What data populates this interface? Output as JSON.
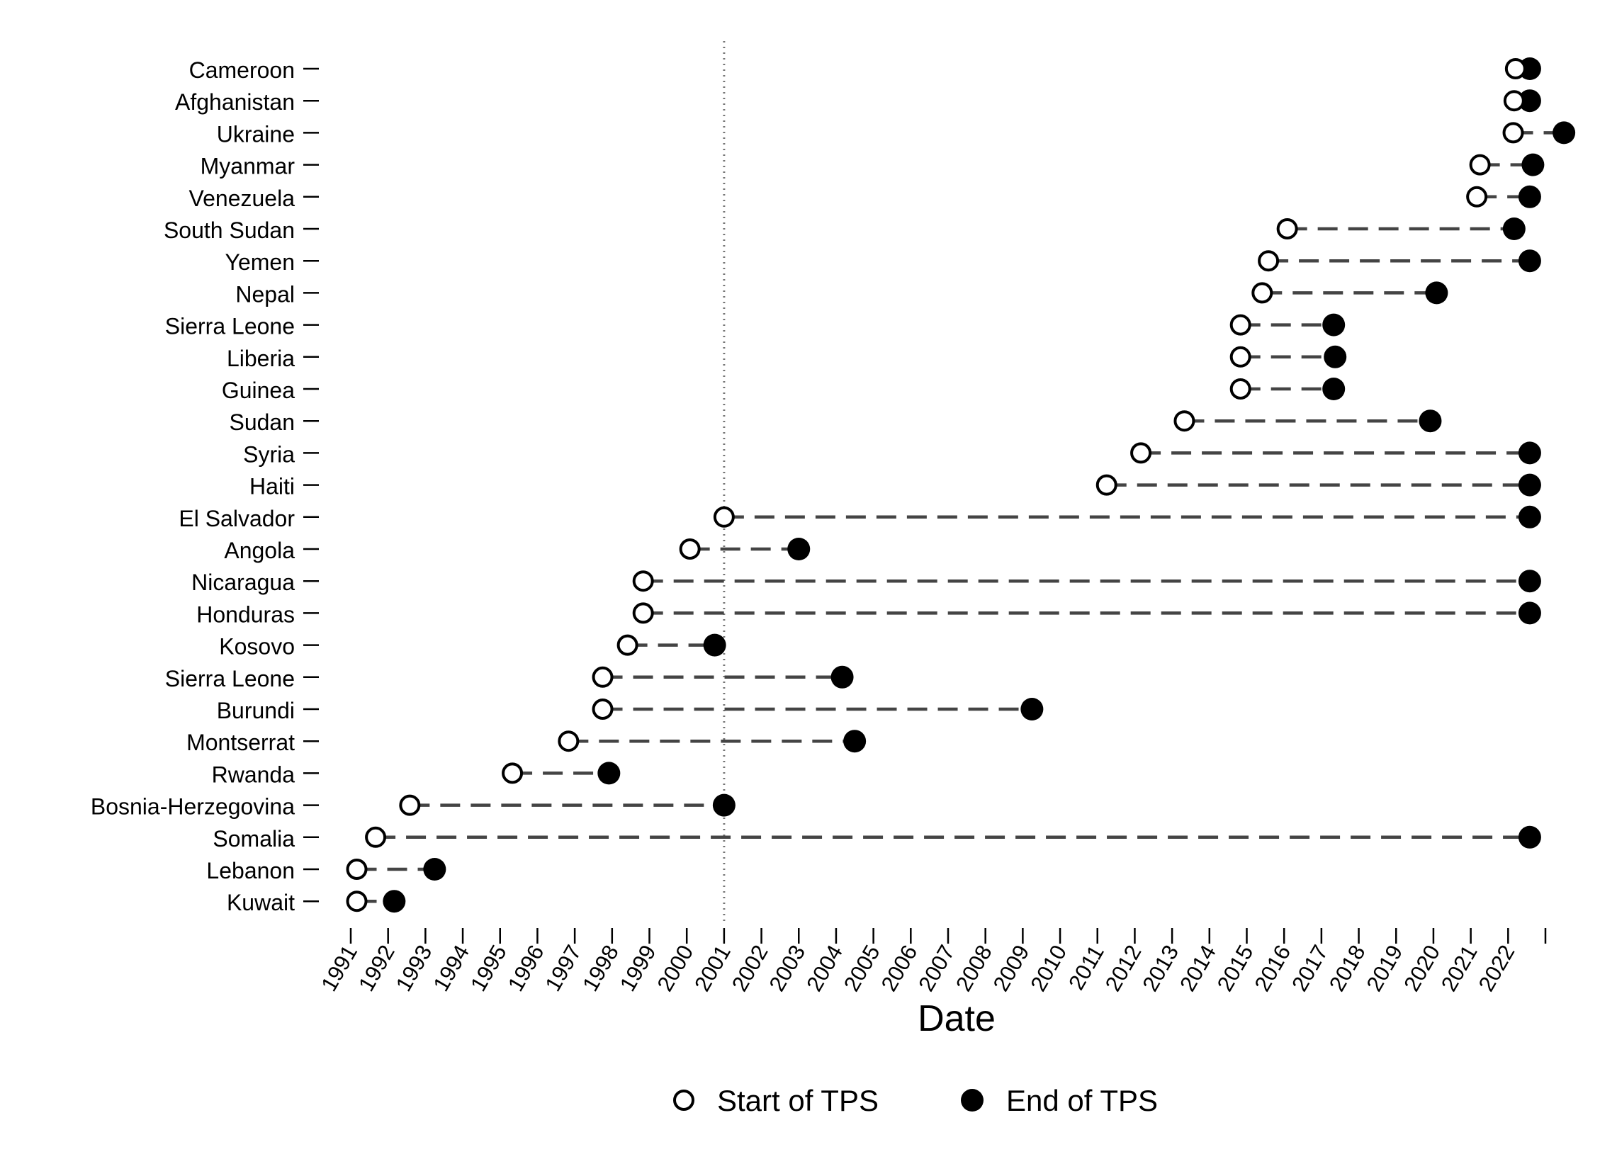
{
  "chart_data": {
    "type": "dot-range",
    "xlabel": "Date",
    "x_ticks": [
      "1991",
      "1992",
      "1993",
      "1994",
      "1995",
      "1996",
      "1997",
      "1998",
      "1999",
      "2000",
      "2001",
      "2002",
      "2003",
      "2004",
      "2005",
      "2006",
      "2007",
      "2008",
      "2009",
      "2010",
      "2011",
      "2012",
      "2013",
      "2014",
      "2015",
      "2016",
      "2017",
      "2018",
      "2019",
      "2020",
      "2021",
      "2022",
      ""
    ],
    "xlim": [
      "1991-01-01",
      "2023-01-01"
    ],
    "reference_line": {
      "date": "2001-01-01",
      "style": "dotted"
    },
    "legend": {
      "placement": "bottom",
      "items": [
        {
          "name": "Start of TPS",
          "marker": "open-circle"
        },
        {
          "name": "End of TPS",
          "marker": "filled-circle"
        }
      ]
    },
    "rows": [
      {
        "country": "Cameroon",
        "start": "2022-03-15",
        "end": "2022-08-01"
      },
      {
        "country": "Afghanistan",
        "start": "2022-03-01",
        "end": "2022-08-01"
      },
      {
        "country": "Ukraine",
        "start": "2022-02-20",
        "end": "2023-07-01"
      },
      {
        "country": "Myanmar",
        "start": "2021-04-01",
        "end": "2022-09-01"
      },
      {
        "country": "Venezuela",
        "start": "2021-03-01",
        "end": "2022-08-01"
      },
      {
        "country": "South Sudan",
        "start": "2016-02-01",
        "end": "2022-03-01"
      },
      {
        "country": "Yemen",
        "start": "2015-08-01",
        "end": "2022-08-01"
      },
      {
        "country": "Nepal",
        "start": "2015-06-01",
        "end": "2020-02-01"
      },
      {
        "country": "Sierra Leone",
        "start": "2014-11-01",
        "end": "2017-05-01"
      },
      {
        "country": "Liberia",
        "start": "2014-11-01",
        "end": "2017-05-15"
      },
      {
        "country": "Guinea",
        "start": "2014-11-01",
        "end": "2017-05-01"
      },
      {
        "country": "Sudan",
        "start": "2013-05-01",
        "end": "2019-12-01"
      },
      {
        "country": "Syria",
        "start": "2012-03-01",
        "end": "2022-08-01"
      },
      {
        "country": "Haiti",
        "start": "2011-04-01",
        "end": "2022-08-01"
      },
      {
        "country": "El Salvador",
        "start": "2001-01-01",
        "end": "2022-08-01"
      },
      {
        "country": "Angola",
        "start": "2000-02-01",
        "end": "2003-01-01"
      },
      {
        "country": "Nicaragua",
        "start": "1998-11-01",
        "end": "2022-08-01"
      },
      {
        "country": "Honduras",
        "start": "1998-11-01",
        "end": "2022-08-01"
      },
      {
        "country": "Kosovo",
        "start": "1998-06-01",
        "end": "2000-10-01"
      },
      {
        "country": "Sierra Leone",
        "start": "1997-10-01",
        "end": "2004-03-01"
      },
      {
        "country": "Burundi",
        "start": "1997-10-01",
        "end": "2009-04-01"
      },
      {
        "country": "Montserrat",
        "start": "1996-11-01",
        "end": "2004-07-01"
      },
      {
        "country": "Rwanda",
        "start": "1995-05-01",
        "end": "1997-12-01"
      },
      {
        "country": "Bosnia-Herzegovina",
        "start": "1992-08-01",
        "end": "2001-01-01"
      },
      {
        "country": "Somalia",
        "start": "1991-09-01",
        "end": "2022-08-01"
      },
      {
        "country": "Lebanon",
        "start": "1991-03-01",
        "end": "1993-04-01"
      },
      {
        "country": "Kuwait",
        "start": "1991-03-01",
        "end": "1992-03-01"
      }
    ]
  }
}
